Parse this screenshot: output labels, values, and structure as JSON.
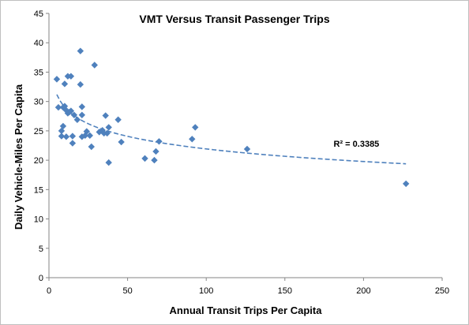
{
  "chart_data": {
    "type": "scatter",
    "title": "VMT Versus Transit Passenger Trips",
    "xlabel": "Annual Transit Trips Per Capita",
    "ylabel": "Daily Vehicle-Miles Per Capita",
    "xlim": [
      0,
      250
    ],
    "ylim": [
      0,
      45
    ],
    "xticks": [
      "0",
      "50",
      "100",
      "150",
      "200",
      "250"
    ],
    "yticks": [
      "0",
      "5",
      "10",
      "15",
      "20",
      "25",
      "30",
      "35",
      "40",
      "45"
    ],
    "grid": false,
    "legend": "none",
    "marker_color": "#4f81bd",
    "trendline": {
      "type": "logarithmic",
      "style": "dashed",
      "color": "#4f81bd",
      "label": "R² = 0.3385",
      "x_range": [
        5,
        227
      ]
    },
    "points": [
      [
        5,
        33.8
      ],
      [
        6,
        29.0
      ],
      [
        8,
        25.0
      ],
      [
        8,
        24.1
      ],
      [
        9,
        25.8
      ],
      [
        9,
        29.0
      ],
      [
        10,
        33.0
      ],
      [
        10,
        29.2
      ],
      [
        11,
        24.0
      ],
      [
        11,
        28.5
      ],
      [
        12,
        28.0
      ],
      [
        12,
        34.3
      ],
      [
        13,
        28.2
      ],
      [
        14,
        34.3
      ],
      [
        14,
        28.4
      ],
      [
        15,
        24.1
      ],
      [
        15,
        22.9
      ],
      [
        16,
        27.7
      ],
      [
        18,
        26.9
      ],
      [
        20,
        38.6
      ],
      [
        20,
        32.9
      ],
      [
        21,
        24.0
      ],
      [
        21,
        27.7
      ],
      [
        21,
        29.1
      ],
      [
        23,
        24.2
      ],
      [
        24,
        24.9
      ],
      [
        26,
        24.2
      ],
      [
        27,
        22.3
      ],
      [
        29,
        36.2
      ],
      [
        32,
        24.8
      ],
      [
        34,
        25.1
      ],
      [
        35,
        24.6
      ],
      [
        36,
        27.6
      ],
      [
        37,
        24.6
      ],
      [
        38,
        25.6
      ],
      [
        38,
        19.6
      ],
      [
        44,
        26.9
      ],
      [
        46,
        23.1
      ],
      [
        61,
        20.3
      ],
      [
        67,
        20.0
      ],
      [
        68,
        21.5
      ],
      [
        70,
        23.2
      ],
      [
        91,
        23.6
      ],
      [
        93,
        25.6
      ],
      [
        126,
        21.9
      ],
      [
        227,
        16.0
      ]
    ]
  }
}
